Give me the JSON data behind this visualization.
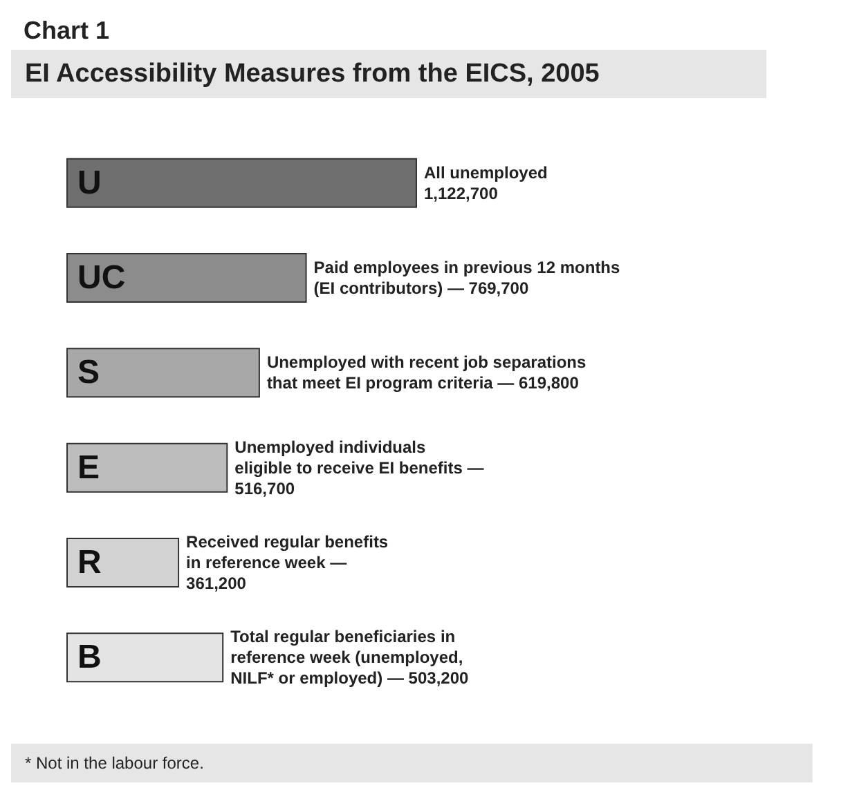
{
  "chart_data": {
    "type": "bar",
    "orientation": "horizontal",
    "title": "Chart 1",
    "subtitle": "EI Accessibility Measures from the EICS, 2005",
    "categories": [
      "U",
      "UC",
      "S",
      "E",
      "R",
      "B"
    ],
    "values": [
      1122700,
      769700,
      619800,
      516700,
      361200,
      503200
    ],
    "colors": [
      "#6e6e6e",
      "#8c8c8c",
      "#a8a8a8",
      "#bdbdbd",
      "#d2d2d2",
      "#e4e4e4"
    ],
    "value_labels": [
      "All unemployed\n1,122,700",
      "Paid employees in previous 12 months\n(EI contributors) — 769,700",
      "Unemployed with recent job separations\nthat meet EI program criteria — 619,800",
      "Unemployed individuals\neligible to receive EI benefits —\n516,700",
      "Received regular benefits\nin reference week —\n361,200",
      "Total regular beneficiaries in\nreference week (unemployed,\nNILF* or employed) — 503,200"
    ],
    "annotations": [
      "* Not in the labour force."
    ]
  }
}
